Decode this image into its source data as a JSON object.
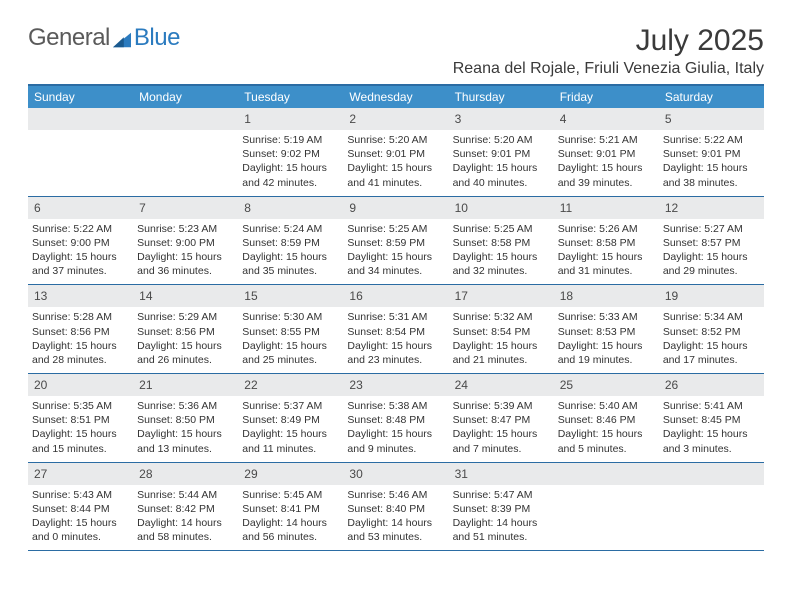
{
  "logo": {
    "general": "General",
    "blue": "Blue"
  },
  "title": "July 2025",
  "location": "Reana del Rojale, Friuli Venezia Giulia, Italy",
  "colors": {
    "header_bg": "#3d8fc9",
    "header_text": "#ffffff",
    "rule": "#2b6ca3",
    "daynum_bg": "#e9eaeb",
    "body_text": "#333333",
    "logo_gray": "#5a5a5a",
    "logo_blue": "#2b7bbf"
  },
  "days_of_week": [
    "Sunday",
    "Monday",
    "Tuesday",
    "Wednesday",
    "Thursday",
    "Friday",
    "Saturday"
  ],
  "cells": [
    {
      "day": "",
      "lines": []
    },
    {
      "day": "",
      "lines": []
    },
    {
      "day": "1",
      "lines": [
        "Sunrise: 5:19 AM",
        "Sunset: 9:02 PM",
        "Daylight: 15 hours and 42 minutes."
      ]
    },
    {
      "day": "2",
      "lines": [
        "Sunrise: 5:20 AM",
        "Sunset: 9:01 PM",
        "Daylight: 15 hours and 41 minutes."
      ]
    },
    {
      "day": "3",
      "lines": [
        "Sunrise: 5:20 AM",
        "Sunset: 9:01 PM",
        "Daylight: 15 hours and 40 minutes."
      ]
    },
    {
      "day": "4",
      "lines": [
        "Sunrise: 5:21 AM",
        "Sunset: 9:01 PM",
        "Daylight: 15 hours and 39 minutes."
      ]
    },
    {
      "day": "5",
      "lines": [
        "Sunrise: 5:22 AM",
        "Sunset: 9:01 PM",
        "Daylight: 15 hours and 38 minutes."
      ]
    },
    {
      "day": "6",
      "lines": [
        "Sunrise: 5:22 AM",
        "Sunset: 9:00 PM",
        "Daylight: 15 hours and 37 minutes."
      ]
    },
    {
      "day": "7",
      "lines": [
        "Sunrise: 5:23 AM",
        "Sunset: 9:00 PM",
        "Daylight: 15 hours and 36 minutes."
      ]
    },
    {
      "day": "8",
      "lines": [
        "Sunrise: 5:24 AM",
        "Sunset: 8:59 PM",
        "Daylight: 15 hours and 35 minutes."
      ]
    },
    {
      "day": "9",
      "lines": [
        "Sunrise: 5:25 AM",
        "Sunset: 8:59 PM",
        "Daylight: 15 hours and 34 minutes."
      ]
    },
    {
      "day": "10",
      "lines": [
        "Sunrise: 5:25 AM",
        "Sunset: 8:58 PM",
        "Daylight: 15 hours and 32 minutes."
      ]
    },
    {
      "day": "11",
      "lines": [
        "Sunrise: 5:26 AM",
        "Sunset: 8:58 PM",
        "Daylight: 15 hours and 31 minutes."
      ]
    },
    {
      "day": "12",
      "lines": [
        "Sunrise: 5:27 AM",
        "Sunset: 8:57 PM",
        "Daylight: 15 hours and 29 minutes."
      ]
    },
    {
      "day": "13",
      "lines": [
        "Sunrise: 5:28 AM",
        "Sunset: 8:56 PM",
        "Daylight: 15 hours and 28 minutes."
      ]
    },
    {
      "day": "14",
      "lines": [
        "Sunrise: 5:29 AM",
        "Sunset: 8:56 PM",
        "Daylight: 15 hours and 26 minutes."
      ]
    },
    {
      "day": "15",
      "lines": [
        "Sunrise: 5:30 AM",
        "Sunset: 8:55 PM",
        "Daylight: 15 hours and 25 minutes."
      ]
    },
    {
      "day": "16",
      "lines": [
        "Sunrise: 5:31 AM",
        "Sunset: 8:54 PM",
        "Daylight: 15 hours and 23 minutes."
      ]
    },
    {
      "day": "17",
      "lines": [
        "Sunrise: 5:32 AM",
        "Sunset: 8:54 PM",
        "Daylight: 15 hours and 21 minutes."
      ]
    },
    {
      "day": "18",
      "lines": [
        "Sunrise: 5:33 AM",
        "Sunset: 8:53 PM",
        "Daylight: 15 hours and 19 minutes."
      ]
    },
    {
      "day": "19",
      "lines": [
        "Sunrise: 5:34 AM",
        "Sunset: 8:52 PM",
        "Daylight: 15 hours and 17 minutes."
      ]
    },
    {
      "day": "20",
      "lines": [
        "Sunrise: 5:35 AM",
        "Sunset: 8:51 PM",
        "Daylight: 15 hours and 15 minutes."
      ]
    },
    {
      "day": "21",
      "lines": [
        "Sunrise: 5:36 AM",
        "Sunset: 8:50 PM",
        "Daylight: 15 hours and 13 minutes."
      ]
    },
    {
      "day": "22",
      "lines": [
        "Sunrise: 5:37 AM",
        "Sunset: 8:49 PM",
        "Daylight: 15 hours and 11 minutes."
      ]
    },
    {
      "day": "23",
      "lines": [
        "Sunrise: 5:38 AM",
        "Sunset: 8:48 PM",
        "Daylight: 15 hours and 9 minutes."
      ]
    },
    {
      "day": "24",
      "lines": [
        "Sunrise: 5:39 AM",
        "Sunset: 8:47 PM",
        "Daylight: 15 hours and 7 minutes."
      ]
    },
    {
      "day": "25",
      "lines": [
        "Sunrise: 5:40 AM",
        "Sunset: 8:46 PM",
        "Daylight: 15 hours and 5 minutes."
      ]
    },
    {
      "day": "26",
      "lines": [
        "Sunrise: 5:41 AM",
        "Sunset: 8:45 PM",
        "Daylight: 15 hours and 3 minutes."
      ]
    },
    {
      "day": "27",
      "lines": [
        "Sunrise: 5:43 AM",
        "Sunset: 8:44 PM",
        "Daylight: 15 hours and 0 minutes."
      ]
    },
    {
      "day": "28",
      "lines": [
        "Sunrise: 5:44 AM",
        "Sunset: 8:42 PM",
        "Daylight: 14 hours and 58 minutes."
      ]
    },
    {
      "day": "29",
      "lines": [
        "Sunrise: 5:45 AM",
        "Sunset: 8:41 PM",
        "Daylight: 14 hours and 56 minutes."
      ]
    },
    {
      "day": "30",
      "lines": [
        "Sunrise: 5:46 AM",
        "Sunset: 8:40 PM",
        "Daylight: 14 hours and 53 minutes."
      ]
    },
    {
      "day": "31",
      "lines": [
        "Sunrise: 5:47 AM",
        "Sunset: 8:39 PM",
        "Daylight: 14 hours and 51 minutes."
      ]
    },
    {
      "day": "",
      "lines": []
    },
    {
      "day": "",
      "lines": []
    }
  ]
}
